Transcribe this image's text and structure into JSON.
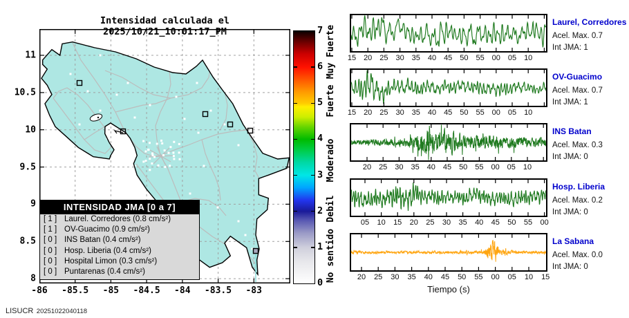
{
  "title": "Intensidad calculada el 2025/10/21_10:01:17_PM",
  "footer": {
    "brand": "LISUCR",
    "code": "20251022040118"
  },
  "colors": {
    "land": "#aee7e3",
    "road": "#bcbcbc",
    "coast": "#000000",
    "grid": "#a0a0a0",
    "station_dot": "#ffffff",
    "label_blue": "#0000cc",
    "wave_green": "#1f7a1f",
    "wave_orange": "#ffa510",
    "legend_bg": "#d9d9d9",
    "epicentral_line": "#8adbd8",
    "filled_marker": "#a9a9bd"
  },
  "map": {
    "x_ticks": [
      "-86",
      "-85.5",
      "-85",
      "-84.5",
      "-84",
      "-83.5",
      "-83"
    ],
    "y_ticks": [
      "11",
      "10.5",
      "10",
      "9.5",
      "9",
      "8.5",
      "8"
    ],
    "legend": {
      "header": "INTENSIDAD JMA [0 a 7]",
      "items": [
        {
          "badge": "[ 1 ]",
          "name": "Laurel. Corredores",
          "detail": "(0.8 cm/s²)"
        },
        {
          "badge": "[ 1 ]",
          "name": "OV-Guacimo",
          "detail": "(0.9 cm/s²)"
        },
        {
          "badge": "[ 0 ]",
          "name": "INS Batan",
          "detail": "(0.4 cm/s²)"
        },
        {
          "badge": "[ 0 ]",
          "name": "Hosp. Liberia",
          "detail": "(0.4 cm/s²)"
        },
        {
          "badge": "[ 0 ]",
          "name": "Hospital Limon",
          "detail": "(0.3 cm/s²)"
        },
        {
          "badge": "[ 0 ]",
          "name": "Puntarenas",
          "detail": "(0.4 cm/s²)"
        }
      ]
    },
    "station_markers": [
      {
        "name": "Hosp. Liberia",
        "x": 58,
        "y": 78,
        "type": "open"
      },
      {
        "name": "Puntarenas",
        "x": 121,
        "y": 148,
        "type": "open"
      },
      {
        "name": "OV-Guacimo",
        "x": 240,
        "y": 123,
        "type": "open"
      },
      {
        "name": "INS Batan",
        "x": 276,
        "y": 138,
        "type": "open"
      },
      {
        "name": "Hospital Limon",
        "x": 305,
        "y": 147,
        "type": "open"
      },
      {
        "name": "Laurel. Corredores",
        "x": 313,
        "y": 321,
        "type": "filled"
      }
    ]
  },
  "colorbar": {
    "ticks": [
      "0",
      "1",
      "2",
      "3",
      "4",
      "5",
      "6",
      "7"
    ],
    "max": 7,
    "range_labels": [
      {
        "text": "No sentido",
        "center": 0.107
      },
      {
        "text": "Debil",
        "center": 0.293
      },
      {
        "text": "Moderado",
        "center": 0.486
      },
      {
        "text": "Fuerte",
        "center": 0.721
      },
      {
        "text": "Muy Fuerte",
        "center": 0.914
      }
    ],
    "gradient": [
      [
        0,
        "#ffffff"
      ],
      [
        0.09,
        "#e6e6ea"
      ],
      [
        0.143,
        "#cfcfdc"
      ],
      [
        0.2,
        "#9a9ac6"
      ],
      [
        0.25,
        "#5858b2"
      ],
      [
        0.286,
        "#1a1a99"
      ],
      [
        0.33,
        "#2236ee"
      ],
      [
        0.38,
        "#00a6ff"
      ],
      [
        0.429,
        "#00e6e6"
      ],
      [
        0.48,
        "#00d8a4"
      ],
      [
        0.53,
        "#00cc44"
      ],
      [
        0.571,
        "#00bb00"
      ],
      [
        0.62,
        "#66d500"
      ],
      [
        0.66,
        "#cdee00"
      ],
      [
        0.7,
        "#ffee00"
      ],
      [
        0.714,
        "#ffcc00"
      ],
      [
        0.76,
        "#ff9900"
      ],
      [
        0.8,
        "#ff6200"
      ],
      [
        0.857,
        "#ff1100"
      ],
      [
        0.91,
        "#cc0000"
      ],
      [
        0.955,
        "#700000"
      ],
      [
        1,
        "#0a0000"
      ]
    ]
  },
  "chart_data": {
    "type": "line",
    "xlabel": "Tiempo (s)",
    "panels": [
      {
        "name": "Laurel, Corredores",
        "acel": "Acel. Max. 0.7",
        "jma": "Int JMA: 1",
        "color": "#1f7a1f",
        "ticks": [
          "15",
          "20",
          "25",
          "30",
          "35",
          "40",
          "45",
          "50",
          "55",
          "00",
          "05",
          "10"
        ],
        "tick_x0": 3,
        "tick_dx": 23.2,
        "wave": {
          "kind": "lowfreq",
          "seed": 11,
          "cycles": 36,
          "amp": 24,
          "env": [
            [
              0,
              0.7
            ],
            [
              0.1,
              1.0
            ],
            [
              0.2,
              0.8
            ],
            [
              0.35,
              0.55
            ],
            [
              0.45,
              0.9
            ],
            [
              0.55,
              0.65
            ],
            [
              0.65,
              0.95
            ],
            [
              0.75,
              0.7
            ],
            [
              0.85,
              0.6
            ],
            [
              1,
              0.8
            ]
          ]
        }
      },
      {
        "name": "OV-Guacimo",
        "acel": "Acel. Max. 0.7",
        "jma": "Int JMA: 1",
        "color": "#1f7a1f",
        "ticks": [
          "15",
          "20",
          "25",
          "30",
          "35",
          "40",
          "45",
          "50",
          "55",
          "00",
          "05",
          "10"
        ],
        "tick_x0": 3,
        "tick_dx": 23.2,
        "wave": {
          "kind": "lowfreq",
          "seed": 27,
          "cycles": 52,
          "amp": 26,
          "env": [
            [
              0,
              0.42
            ],
            [
              0.05,
              0.72
            ],
            [
              0.09,
              1.0
            ],
            [
              0.13,
              0.85
            ],
            [
              0.2,
              0.45
            ],
            [
              0.3,
              0.5
            ],
            [
              0.45,
              0.4
            ],
            [
              0.6,
              0.38
            ],
            [
              0.75,
              0.44
            ],
            [
              0.9,
              0.3
            ],
            [
              1,
              0.32
            ]
          ]
        }
      },
      {
        "name": "INS Batan",
        "acel": "Acel. Max. 0.3",
        "jma": "Int JMA: 0",
        "color": "#1f7a1f",
        "ticks": [
          "20",
          "25",
          "30",
          "35",
          "40",
          "45",
          "50",
          "55",
          "00",
          "05",
          "10"
        ],
        "tick_x0": 25,
        "tick_dx": 23.2,
        "wave": {
          "kind": "noise",
          "seed": 33,
          "amp": 26,
          "env": [
            [
              0,
              0.2
            ],
            [
              0.25,
              0.25
            ],
            [
              0.33,
              0.45
            ],
            [
              0.37,
              0.95
            ],
            [
              0.43,
              0.7
            ],
            [
              0.49,
              0.9
            ],
            [
              0.56,
              0.55
            ],
            [
              0.66,
              0.5
            ],
            [
              0.78,
              0.45
            ],
            [
              0.9,
              0.35
            ],
            [
              1,
              0.3
            ]
          ]
        }
      },
      {
        "name": "Hosp. Liberia",
        "acel": "Acel. Max. 0.2",
        "jma": "Int JMA: 0",
        "color": "#1f7a1f",
        "ticks": [
          "05",
          "10",
          "15",
          "20",
          "25",
          "30",
          "35",
          "40",
          "45",
          "50",
          "55",
          "00"
        ],
        "tick_x0": 22,
        "tick_dx": 23.6,
        "wave": {
          "kind": "lowfreq",
          "seed": 44,
          "cycles": 70,
          "amp": 23,
          "env": [
            [
              0,
              0.78
            ],
            [
              0.1,
              0.62
            ],
            [
              0.2,
              0.72
            ],
            [
              0.3,
              1.0
            ],
            [
              0.36,
              0.58
            ],
            [
              0.5,
              0.5
            ],
            [
              0.7,
              0.52
            ],
            [
              0.85,
              0.58
            ],
            [
              1,
              0.46
            ]
          ]
        }
      },
      {
        "name": "La Sabana",
        "acel": "Acel. Max. 0.0",
        "jma": "Int JMA: 0",
        "color": "#ffa510",
        "ticks": [
          "20",
          "25",
          "30",
          "35",
          "40",
          "45",
          "50",
          "55",
          "00",
          "05",
          "10",
          "15"
        ],
        "tick_x0": 17,
        "tick_dx": 24.2,
        "wave": {
          "kind": "noise",
          "seed": 55,
          "amp": 26,
          "env": [
            [
              0,
              0.1
            ],
            [
              0.3,
              0.09
            ],
            [
              0.55,
              0.1
            ],
            [
              0.68,
              0.12
            ],
            [
              0.705,
              0.5
            ],
            [
              0.725,
              1.0
            ],
            [
              0.745,
              0.55
            ],
            [
              0.765,
              0.18
            ],
            [
              0.85,
              0.12
            ],
            [
              1,
              0.1
            ]
          ]
        }
      }
    ]
  }
}
